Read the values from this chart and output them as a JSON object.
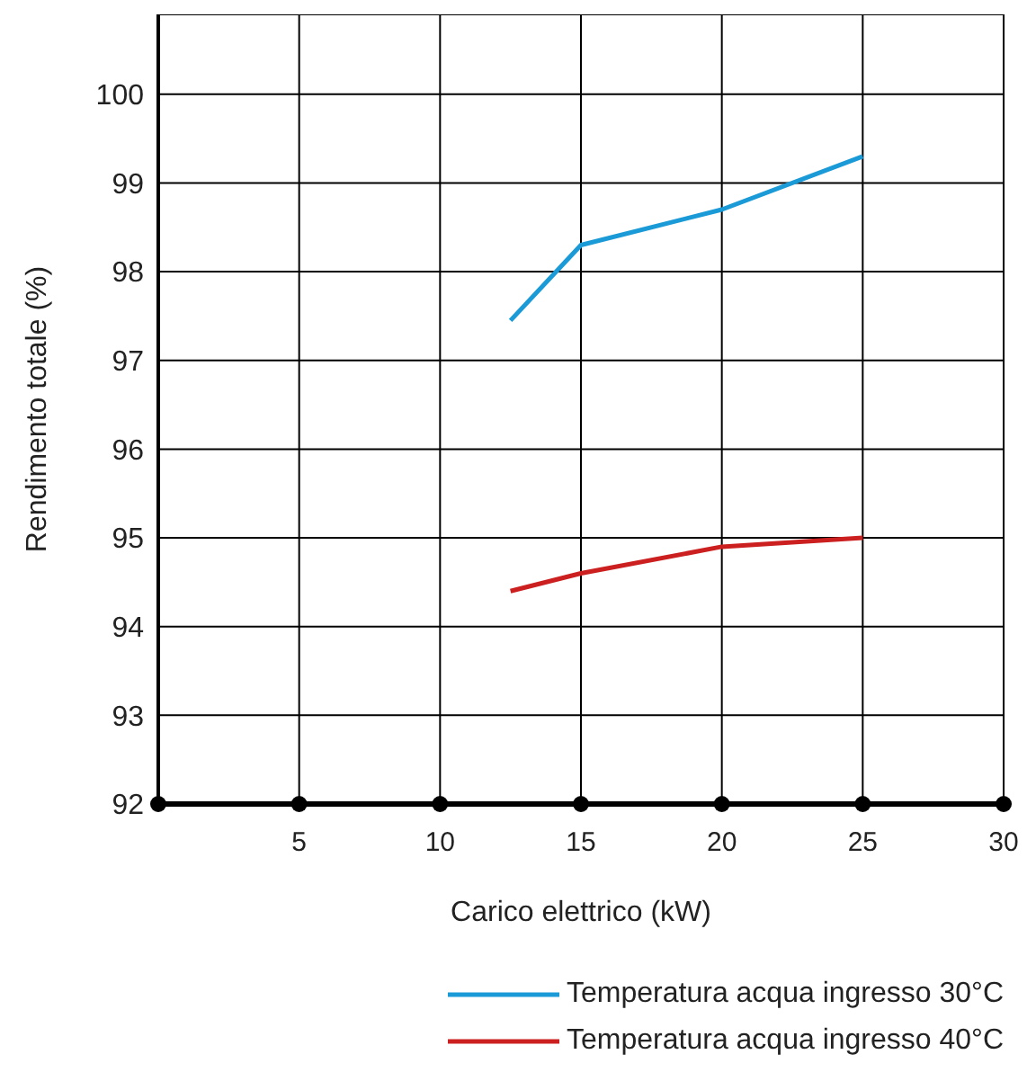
{
  "chart_data": {
    "type": "line",
    "xlabel": "Carico elettrico (kW)",
    "ylabel": "Rendimento totale (%)",
    "xlim": [
      0,
      30
    ],
    "xticks": [
      {
        "value": 0,
        "label": null
      },
      5,
      10,
      15,
      20,
      25,
      30
    ],
    "ylim": [
      92,
      100.9
    ],
    "yticks": [
      92,
      93,
      94,
      95,
      96,
      97,
      98,
      99,
      100
    ],
    "series": [
      {
        "name": "Temperatura acqua ingresso 30°C",
        "color": "#1a9ad6",
        "x": [
          12.5,
          15,
          20,
          25
        ],
        "values": [
          97.45,
          98.3,
          98.7,
          99.3
        ]
      },
      {
        "name": "Temperatura acqua ingresso 40°C",
        "color": "#cc1f1f",
        "x": [
          12.5,
          15,
          20,
          25
        ],
        "values": [
          94.4,
          94.6,
          94.9,
          95.0
        ]
      }
    ],
    "grid": true,
    "legend": "bottom right",
    "marker": "none",
    "line_style": "solid"
  }
}
